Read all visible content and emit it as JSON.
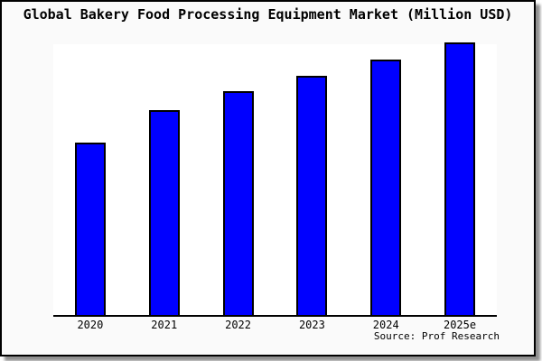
{
  "window": {
    "title": "Global Bakery Food Processing Equipment Market (Million USD)"
  },
  "chart_data": {
    "type": "bar",
    "title": "Global Bakery Food Processing Equipment Market (Million USD)",
    "categories": [
      "2020",
      "2021",
      "2022",
      "2023",
      "2024",
      "2025e"
    ],
    "values": [
      189,
      225,
      246,
      263,
      281,
      300
    ],
    "values_unit": "relative bar heights in px (chart shows no y-axis tick labels or data labels)",
    "relative_index_2020_100": [
      100,
      119,
      130,
      139,
      149,
      159
    ],
    "xlabel": "",
    "ylabel": "",
    "ylim": [
      0,
      300
    ],
    "grid": false,
    "legend": null,
    "bar_color": "#0000ff",
    "bar_border_color": "#000000",
    "axis_color": "#000000"
  },
  "source": {
    "label": "Source: Prof Research"
  },
  "colors": {
    "card_background": "#fafafa",
    "plot_background": "#ffffff",
    "bar": "#0000ff",
    "border": "#000000",
    "shadow": "#8f8f8f",
    "text": "#000000"
  }
}
